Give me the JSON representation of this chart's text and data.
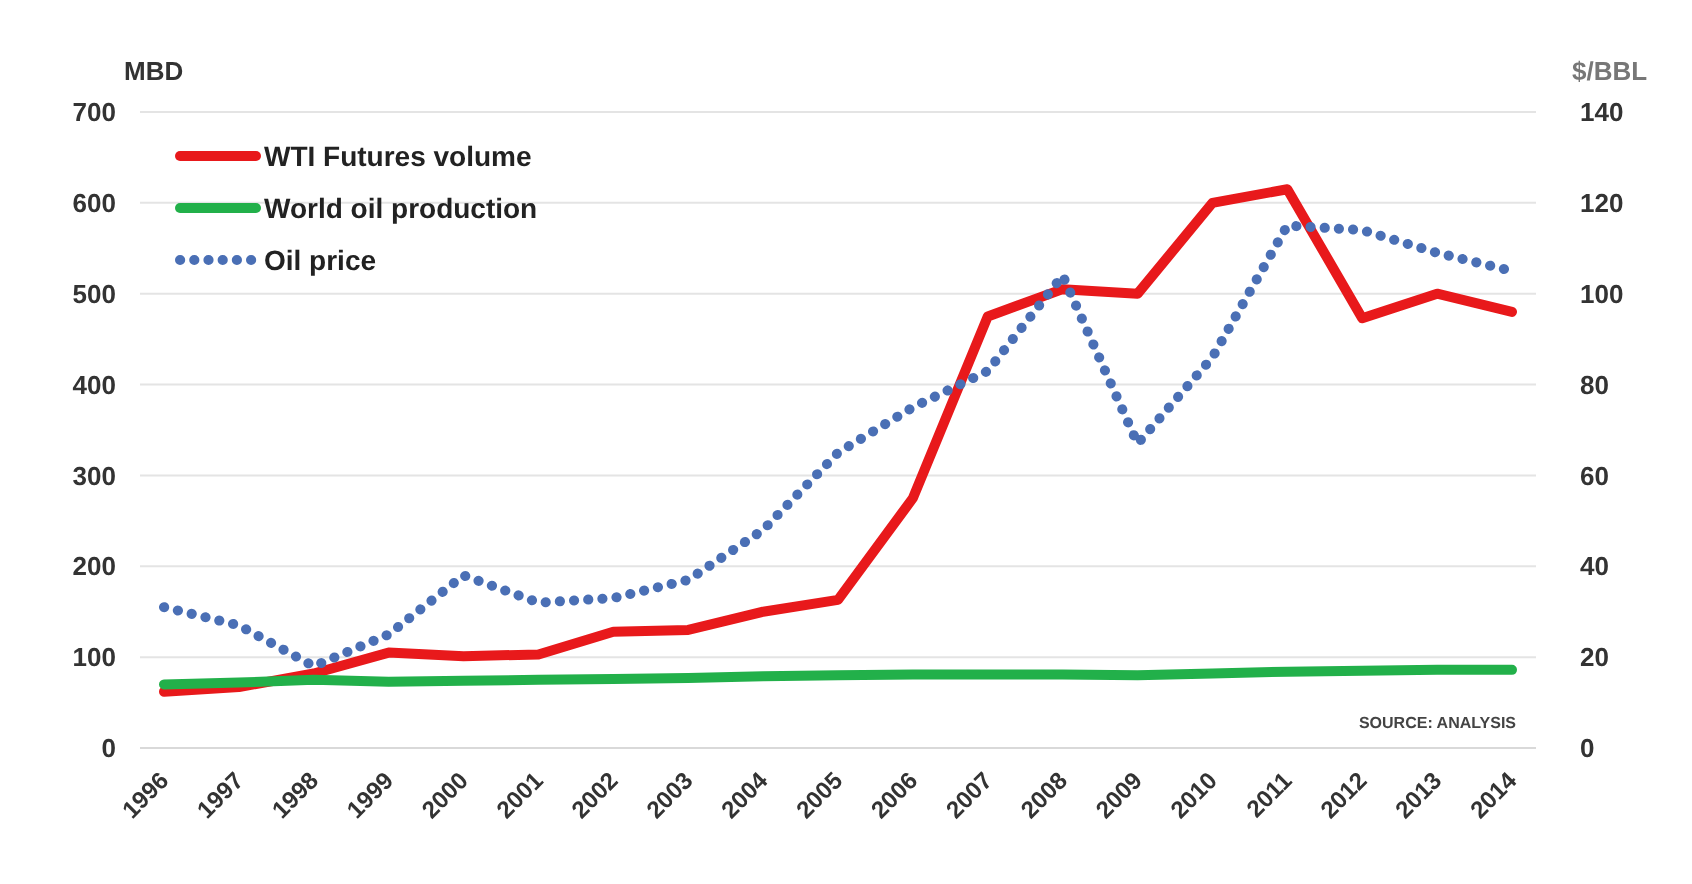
{
  "chart_data": {
    "type": "line",
    "ylabel": "MBD",
    "y2label": "$/BBL",
    "categories": [
      "1996",
      "1997",
      "1998",
      "1999",
      "2000",
      "2001",
      "2002",
      "2003",
      "2004",
      "2005",
      "2006",
      "2007",
      "2008",
      "2009",
      "2010",
      "2011",
      "2012",
      "2013",
      "2014"
    ],
    "series": [
      {
        "name": "WTI Futures volume",
        "color": "#e8191b",
        "line_style": "solid",
        "values": [
          62,
          67,
          82,
          105,
          101,
          103,
          128,
          130,
          150,
          163,
          275,
          475,
          505,
          500,
          600,
          615,
          473,
          500,
          480
        ]
      },
      {
        "name": "World oil production",
        "color": "#22b04a",
        "line_style": "solid",
        "values": [
          70,
          72,
          75,
          73,
          74,
          75,
          76,
          77,
          79,
          80,
          81,
          81,
          81,
          80,
          82,
          84,
          85,
          86,
          86
        ]
      },
      {
        "name": "Oil price",
        "color": "#4a6fb5",
        "line_style": "dotted",
        "axis": "y2",
        "values": [
          31,
          27,
          18,
          25,
          38,
          32,
          33,
          37,
          48,
          65,
          75,
          83,
          104,
          67,
          86,
          115,
          114,
          109,
          105
        ]
      }
    ],
    "ylim": [
      0,
      700
    ],
    "yticks": [
      0,
      100,
      200,
      300,
      400,
      500,
      600,
      700
    ],
    "y2lim": [
      0,
      140
    ],
    "y2ticks": [
      0,
      20,
      40,
      60,
      80,
      100,
      120,
      140
    ],
    "grid": "y",
    "legend": "top left",
    "annotations": [
      "SOURCE: ANALYSIS"
    ]
  }
}
